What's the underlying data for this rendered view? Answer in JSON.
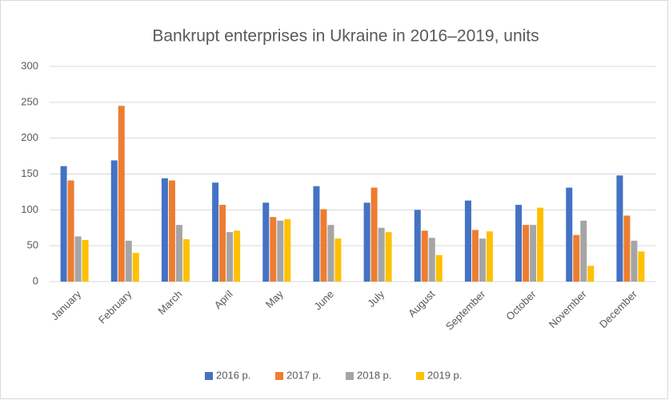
{
  "chart_data": {
    "type": "bar",
    "title": "Bankrupt enterprises in Ukraine in 2016–2019, units",
    "categories": [
      "January",
      "February",
      "March",
      "April",
      "May",
      "June",
      "July",
      "August",
      "September",
      "October",
      "November",
      "December"
    ],
    "series": [
      {
        "name": "2016 p.",
        "color": "#4472c4",
        "values": [
          161,
          169,
          144,
          138,
          110,
          133,
          110,
          100,
          113,
          107,
          131,
          148
        ]
      },
      {
        "name": "2017 p.",
        "color": "#ed7d31",
        "values": [
          141,
          245,
          141,
          107,
          90,
          101,
          131,
          71,
          72,
          79,
          65,
          92
        ]
      },
      {
        "name": "2018 p.",
        "color": "#a5a5a5",
        "values": [
          63,
          57,
          79,
          69,
          85,
          79,
          75,
          61,
          60,
          79,
          85,
          57
        ]
      },
      {
        "name": "2019 p.",
        "color": "#ffc000",
        "values": [
          58,
          40,
          59,
          71,
          87,
          60,
          69,
          37,
          70,
          103,
          22,
          42
        ]
      }
    ],
    "ylim": [
      0,
      300
    ],
    "yticks": [
      0,
      50,
      100,
      150,
      200,
      250,
      300
    ],
    "grid": true,
    "legend": "bottom"
  }
}
